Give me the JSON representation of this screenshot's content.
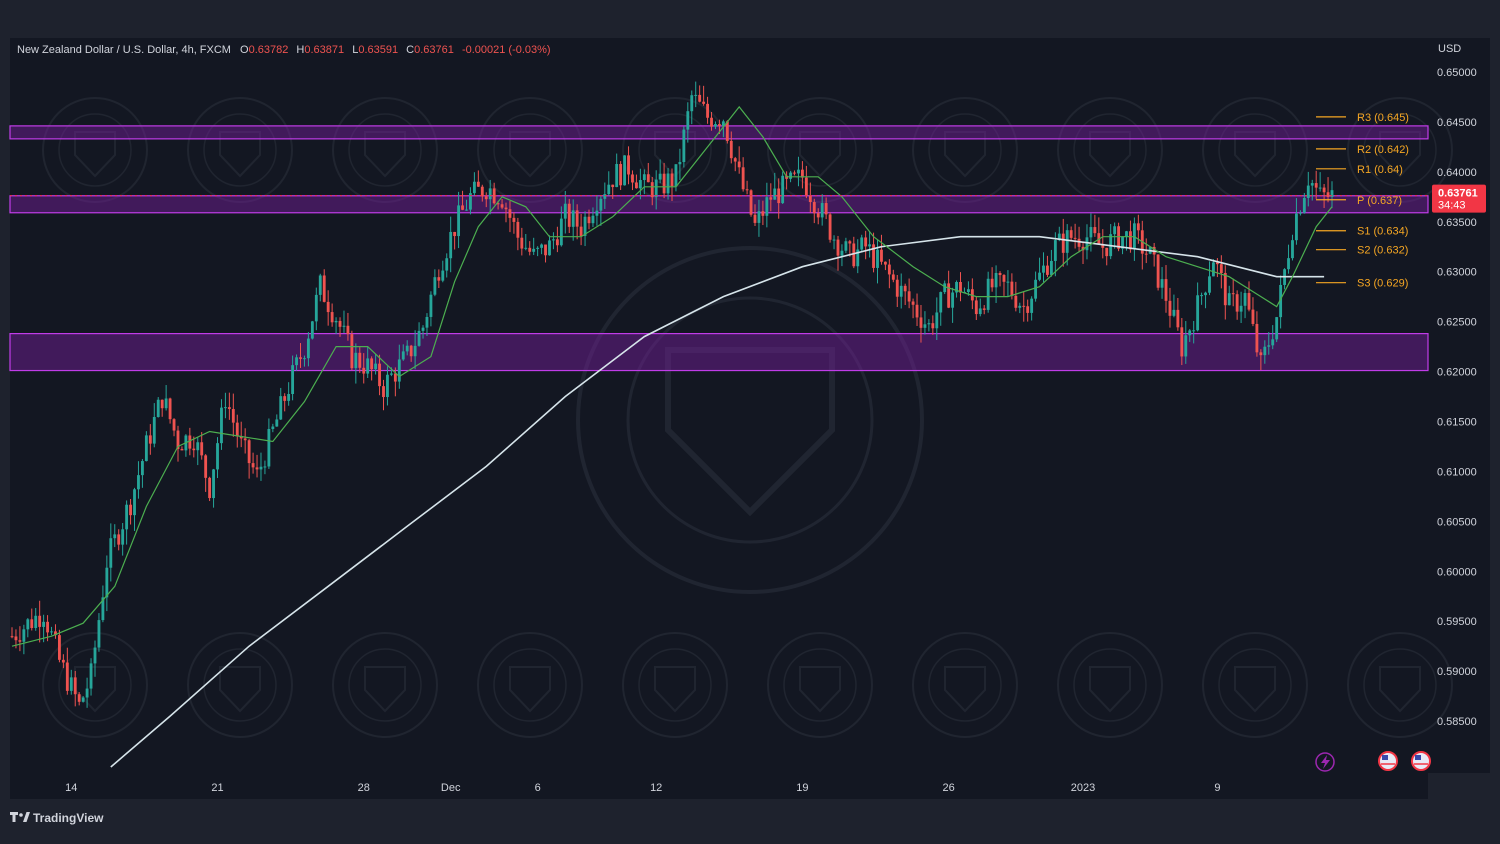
{
  "header": {
    "symbol": "New Zealand Dollar / U.S. Dollar, 4h, FXCM",
    "o_label": "O",
    "o_value": "0.63782",
    "h_label": "H",
    "h_value": "0.63871",
    "l_label": "L",
    "l_value": "0.63591",
    "c_label": "C",
    "c_value": "0.63761",
    "change": "-0.00021 (-0.03%)"
  },
  "currency": "USD",
  "price_tag": {
    "price": "0.63761",
    "countdown": "34:43"
  },
  "branding": {
    "name": "TradingView"
  },
  "colors": {
    "background": "#131722",
    "frame": "#1e222d",
    "bull": "#26a69a",
    "bear": "#ef5350",
    "zone": "#7b1fa2",
    "zone_edge": "#c03ce8",
    "ma_fast": "#4caf50",
    "ma_slow": "#d6e4ea",
    "pivot": "#f5a623",
    "tag": "#f23645"
  },
  "chart_data": {
    "type": "candlestick",
    "y_ticks": [
      "0.65000",
      "0.64500",
      "0.64000",
      "0.63500",
      "0.63000",
      "0.62500",
      "0.62000",
      "0.61500",
      "0.61000",
      "0.60500",
      "0.60000",
      "0.59500",
      "0.59000",
      "0.58500"
    ],
    "y_tick_values": [
      0.65,
      0.645,
      0.64,
      0.635,
      0.63,
      0.625,
      0.62,
      0.615,
      0.61,
      0.605,
      0.6,
      0.595,
      0.59,
      0.585
    ],
    "ylim": [
      0.5798,
      0.6534
    ],
    "x_ticks": [
      "14",
      "21",
      "28",
      "Dec",
      "6",
      "12",
      "19",
      "26",
      "2023",
      "9"
    ],
    "x_tick_index": [
      15,
      52,
      89,
      111,
      133,
      163,
      200,
      237,
      271,
      305
    ],
    "bar_count": 335,
    "close_path": [
      [
        0,
        0.5935
      ],
      [
        8,
        0.596
      ],
      [
        12,
        0.591
      ],
      [
        17,
        0.5865
      ],
      [
        20,
        0.5895
      ],
      [
        24,
        0.601
      ],
      [
        30,
        0.607
      ],
      [
        34,
        0.6125
      ],
      [
        38,
        0.6175
      ],
      [
        42,
        0.613
      ],
      [
        46,
        0.6135
      ],
      [
        50,
        0.6085
      ],
      [
        54,
        0.6175
      ],
      [
        58,
        0.6125
      ],
      [
        62,
        0.6095
      ],
      [
        66,
        0.614
      ],
      [
        70,
        0.6185
      ],
      [
        74,
        0.6225
      ],
      [
        78,
        0.6285
      ],
      [
        82,
        0.6255
      ],
      [
        86,
        0.6215
      ],
      [
        90,
        0.6205
      ],
      [
        94,
        0.6185
      ],
      [
        100,
        0.6215
      ],
      [
        104,
        0.6245
      ],
      [
        108,
        0.6305
      ],
      [
        112,
        0.6345
      ],
      [
        116,
        0.6375
      ],
      [
        120,
        0.6385
      ],
      [
        124,
        0.6375
      ],
      [
        128,
        0.6335
      ],
      [
        132,
        0.6315
      ],
      [
        136,
        0.6325
      ],
      [
        140,
        0.6355
      ],
      [
        144,
        0.6345
      ],
      [
        148,
        0.6375
      ],
      [
        152,
        0.6395
      ],
      [
        156,
        0.6405
      ],
      [
        160,
        0.6385
      ],
      [
        164,
        0.6385
      ],
      [
        168,
        0.6395
      ],
      [
        172,
        0.6475
      ],
      [
        176,
        0.6455
      ],
      [
        180,
        0.6455
      ],
      [
        184,
        0.6395
      ],
      [
        188,
        0.6345
      ],
      [
        192,
        0.6375
      ],
      [
        196,
        0.6385
      ],
      [
        200,
        0.6395
      ],
      [
        204,
        0.6365
      ],
      [
        208,
        0.6335
      ],
      [
        212,
        0.6315
      ],
      [
        216,
        0.6325
      ],
      [
        220,
        0.6305
      ],
      [
        224,
        0.6285
      ],
      [
        228,
        0.6265
      ],
      [
        232,
        0.6245
      ],
      [
        236,
        0.6275
      ],
      [
        240,
        0.6285
      ],
      [
        244,
        0.6265
      ],
      [
        248,
        0.6285
      ],
      [
        252,
        0.6285
      ],
      [
        256,
        0.6265
      ],
      [
        260,
        0.6295
      ],
      [
        264,
        0.6325
      ],
      [
        268,
        0.6335
      ],
      [
        272,
        0.6335
      ],
      [
        276,
        0.6325
      ],
      [
        280,
        0.6335
      ],
      [
        284,
        0.6335
      ],
      [
        288,
        0.6315
      ],
      [
        292,
        0.6275
      ],
      [
        296,
        0.6225
      ],
      [
        300,
        0.6265
      ],
      [
        304,
        0.6315
      ],
      [
        308,
        0.6265
      ],
      [
        312,
        0.6275
      ],
      [
        316,
        0.6205
      ],
      [
        320,
        0.6255
      ],
      [
        324,
        0.6345
      ],
      [
        328,
        0.6395
      ],
      [
        331,
        0.6375
      ],
      [
        334,
        0.6376
      ]
    ],
    "ma_fast_path": [
      [
        0,
        0.5925
      ],
      [
        10,
        0.5935
      ],
      [
        18,
        0.5948
      ],
      [
        26,
        0.5985
      ],
      [
        34,
        0.6065
      ],
      [
        42,
        0.6125
      ],
      [
        50,
        0.614
      ],
      [
        58,
        0.6135
      ],
      [
        66,
        0.613
      ],
      [
        74,
        0.617
      ],
      [
        82,
        0.6225
      ],
      [
        90,
        0.6225
      ],
      [
        98,
        0.6195
      ],
      [
        106,
        0.6215
      ],
      [
        112,
        0.629
      ],
      [
        118,
        0.6345
      ],
      [
        124,
        0.6375
      ],
      [
        130,
        0.6365
      ],
      [
        136,
        0.6335
      ],
      [
        144,
        0.6335
      ],
      [
        152,
        0.6355
      ],
      [
        160,
        0.6385
      ],
      [
        168,
        0.6385
      ],
      [
        176,
        0.6425
      ],
      [
        184,
        0.6465
      ],
      [
        190,
        0.6435
      ],
      [
        196,
        0.6395
      ],
      [
        204,
        0.6395
      ],
      [
        210,
        0.6375
      ],
      [
        218,
        0.6335
      ],
      [
        228,
        0.6305
      ],
      [
        236,
        0.6285
      ],
      [
        244,
        0.6275
      ],
      [
        252,
        0.6275
      ],
      [
        260,
        0.6285
      ],
      [
        268,
        0.6315
      ],
      [
        276,
        0.6335
      ],
      [
        284,
        0.6335
      ],
      [
        292,
        0.6315
      ],
      [
        300,
        0.6305
      ],
      [
        308,
        0.6295
      ],
      [
        316,
        0.6275
      ],
      [
        320,
        0.6265
      ],
      [
        324,
        0.6295
      ],
      [
        330,
        0.6345
      ],
      [
        334,
        0.6365
      ]
    ],
    "ma_slow_path": [
      [
        25,
        0.5804
      ],
      [
        40,
        0.5855
      ],
      [
        60,
        0.5925
      ],
      [
        80,
        0.5985
      ],
      [
        100,
        0.6045
      ],
      [
        120,
        0.6105
      ],
      [
        140,
        0.6175
      ],
      [
        160,
        0.6235
      ],
      [
        180,
        0.6275
      ],
      [
        200,
        0.6305
      ],
      [
        220,
        0.6325
      ],
      [
        240,
        0.6335
      ],
      [
        260,
        0.6335
      ],
      [
        280,
        0.6325
      ],
      [
        300,
        0.6315
      ],
      [
        310,
        0.6305
      ],
      [
        320,
        0.6295
      ],
      [
        332,
        0.6295
      ]
    ],
    "zones": [
      {
        "from": 0.6433,
        "to": 0.6446
      },
      {
        "from": 0.6359,
        "to": 0.6376
      },
      {
        "from": 0.6201,
        "to": 0.6238
      }
    ],
    "pivots": [
      {
        "label": "R3 (0.645)",
        "value": 0.6455
      },
      {
        "label": "R2 (0.642)",
        "value": 0.6423
      },
      {
        "label": "R1 (0.64)",
        "value": 0.6403
      },
      {
        "label": "P (0.637)",
        "value": 0.6372
      },
      {
        "label": "S1 (0.634)",
        "value": 0.6341
      },
      {
        "label": "S2 (0.632)",
        "value": 0.6322
      },
      {
        "label": "S3 (0.629)",
        "value": 0.6289
      }
    ],
    "last_price": 0.63761
  }
}
